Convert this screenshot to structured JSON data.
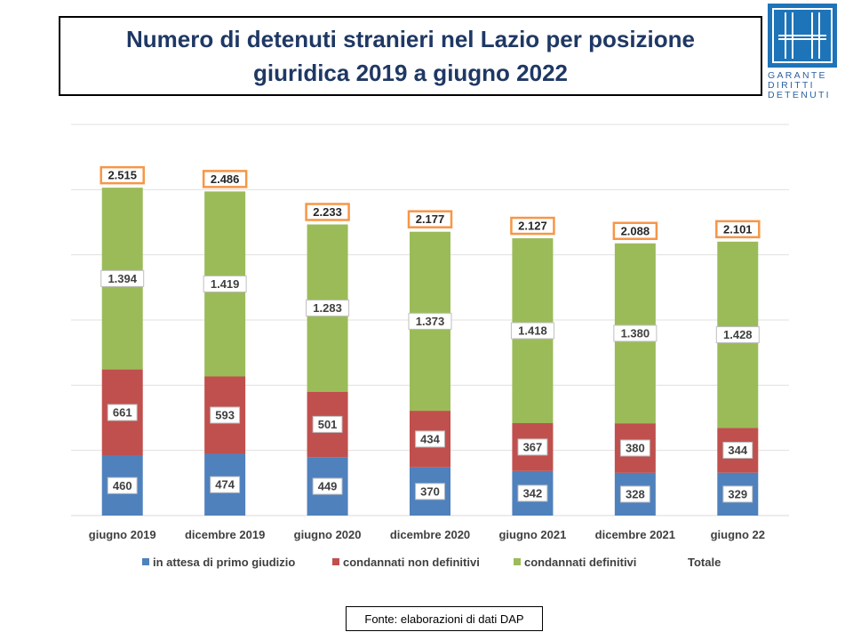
{
  "title": "Numero di detenuti stranieri nel Lazio per posizione giuridica 2019 a giugno 2022",
  "logo": {
    "lines": [
      "GARANTE",
      "DIRITTI",
      "DETENUTI"
    ]
  },
  "source": "Fonte: elaborazioni di dati DAP",
  "colors": {
    "attesa": "#4f81bd",
    "non_definitivi": "#c0504d",
    "definitivi": "#9bbb59",
    "total_border": "#f79646"
  },
  "chart_data": {
    "type": "bar",
    "stacked": true,
    "title": "Numero di detenuti stranieri nel Lazio per posizione giuridica 2019 a giugno 2022",
    "categories": [
      "giugno 2019",
      "dicembre 2019",
      "giugno 2020",
      "dicembre 2020",
      "giugno 2021",
      "dicembre 2021",
      "giugno 22"
    ],
    "series": [
      {
        "name": "in attesa di primo giudizio",
        "values": [
          460,
          474,
          449,
          370,
          342,
          328,
          329
        ],
        "labels": [
          "460",
          "474",
          "449",
          "370",
          "342",
          "328",
          "329"
        ]
      },
      {
        "name": "condannati non definitivi",
        "values": [
          661,
          593,
          501,
          434,
          367,
          380,
          344
        ],
        "labels": [
          "661",
          "593",
          "501",
          "434",
          "367",
          "380",
          "344"
        ]
      },
      {
        "name": "condannati definitivi",
        "values": [
          1394,
          1419,
          1283,
          1373,
          1418,
          1380,
          1428
        ],
        "labels": [
          "1.394",
          "1.419",
          "1.283",
          "1.373",
          "1.418",
          "1.380",
          "1.428"
        ]
      }
    ],
    "totals": {
      "name": "Totale",
      "values": [
        2515,
        2486,
        2233,
        2177,
        2127,
        2088,
        2101
      ],
      "labels": [
        "2.515",
        "2.486",
        "2.233",
        "2.177",
        "2.127",
        "2.088",
        "2.101"
      ]
    },
    "ylim": [
      0,
      3000
    ],
    "grid": true,
    "legend": "bottom"
  }
}
